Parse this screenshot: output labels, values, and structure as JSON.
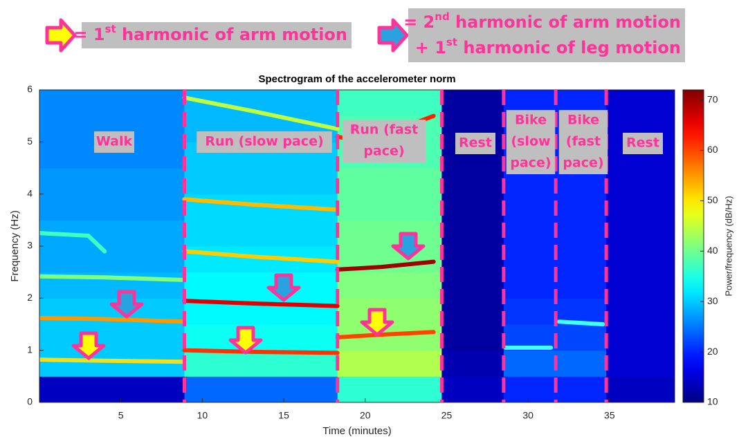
{
  "chart_data": {
    "type": "heatmap",
    "title": "Spectrogram of the accelerometer norm",
    "xlabel": "Time (minutes)",
    "ylabel": "Frequency (Hz)",
    "colorbar_label": "Power/frequency (dB/Hz)",
    "xlim": [
      0,
      39
    ],
    "ylim": [
      0,
      6
    ],
    "xticks": [
      5,
      10,
      15,
      20,
      25,
      30,
      35
    ],
    "yticks": [
      0,
      1,
      2,
      3,
      4,
      5,
      6
    ],
    "clim": [
      10,
      72
    ],
    "cticks": [
      10,
      20,
      30,
      40,
      50,
      60,
      70
    ],
    "x_edges": [
      0,
      8.9,
      18.3,
      24.7,
      28.5,
      31.7,
      34.8,
      39
    ],
    "y_edges": [
      0,
      0.5,
      1,
      1.5,
      2,
      2.5,
      3,
      3.5,
      4,
      4.5,
      5,
      5.5,
      6
    ],
    "values": [
      [
        14,
        30,
        30,
        30,
        29,
        28,
        28,
        27,
        27,
        26,
        26,
        26
      ],
      [
        24,
        36,
        34,
        33,
        33,
        32,
        31,
        31,
        30,
        30,
        29,
        29
      ],
      [
        36,
        44,
        42,
        42,
        41,
        40,
        40,
        39,
        39,
        38,
        38,
        37
      ],
      [
        14,
        13,
        12,
        12,
        12,
        12,
        12,
        12,
        12,
        12,
        12,
        12
      ],
      [
        20,
        24,
        22,
        21,
        20,
        20,
        20,
        20,
        20,
        20,
        20,
        20
      ],
      [
        20,
        24,
        22,
        21,
        20,
        20,
        20,
        20,
        20,
        20,
        20,
        20
      ],
      [
        14,
        15,
        15,
        15,
        15,
        15,
        15,
        15,
        15,
        15,
        15,
        15
      ]
    ],
    "series": [
      {
        "color": "#f0e020",
        "x": [
          0,
          4,
          8.9
        ],
        "values": [
          0.82,
          0.8,
          0.78
        ]
      },
      {
        "color": "#ff9900",
        "x": [
          0,
          4,
          8.9
        ],
        "values": [
          1.62,
          1.6,
          1.55
        ]
      },
      {
        "color": "#80ff80",
        "x": [
          0,
          4,
          8.9
        ],
        "values": [
          2.42,
          2.4,
          2.35
        ]
      },
      {
        "color": "#40ffc0",
        "x": [
          0,
          3,
          4
        ],
        "values": [
          3.25,
          3.2,
          2.9
        ]
      },
      {
        "color": "#ff3300",
        "x": [
          8.9,
          13,
          18.3
        ],
        "values": [
          1.0,
          0.97,
          0.95
        ]
      },
      {
        "color": "#e00000",
        "x": [
          8.9,
          13,
          18.3
        ],
        "values": [
          1.95,
          1.9,
          1.85
        ]
      },
      {
        "color": "#ffcc00",
        "x": [
          8.9,
          13,
          18.3
        ],
        "values": [
          2.9,
          2.8,
          2.7
        ]
      },
      {
        "color": "#ffbb00",
        "x": [
          8.9,
          13,
          18.3
        ],
        "values": [
          3.9,
          3.8,
          3.7
        ]
      },
      {
        "color": "#c0ff40",
        "x": [
          8.9,
          13,
          18.3
        ],
        "values": [
          5.85,
          5.6,
          5.25
        ]
      },
      {
        "color": "#ff4400",
        "x": [
          18.3,
          21,
          24.2
        ],
        "values": [
          1.25,
          1.3,
          1.35
        ]
      },
      {
        "color": "#a00000",
        "x": [
          18.3,
          21,
          24.2
        ],
        "values": [
          2.55,
          2.6,
          2.7
        ]
      },
      {
        "color": "#ff2200",
        "x": [
          18.3,
          20,
          24.2
        ],
        "values": [
          5.1,
          5.0,
          5.5
        ]
      },
      {
        "color": "#40ffff",
        "x": [
          28.6,
          31.4
        ],
        "values": [
          1.05,
          1.05
        ]
      },
      {
        "color": "#40ffff",
        "x": [
          31.9,
          34.6
        ],
        "values": [
          1.55,
          1.5
        ]
      }
    ],
    "segment_labels": [
      [
        "Walk"
      ],
      [
        "Run (slow pace)"
      ],
      [
        "Run (fast",
        "pace)"
      ],
      [
        "Rest"
      ],
      [
        "Bike",
        "(slow",
        "pace)"
      ],
      [
        "Bike",
        "(fast",
        "pace)"
      ],
      [
        "Rest"
      ]
    ],
    "notes": [
      [
        [
          "= 1",
          "st",
          " harmonic of arm motion"
        ]
      ],
      [
        [
          "= 2",
          "nd",
          " harmonic of arm motion"
        ],
        [
          "+ 1",
          "st",
          " harmonic of leg motion"
        ]
      ]
    ]
  }
}
